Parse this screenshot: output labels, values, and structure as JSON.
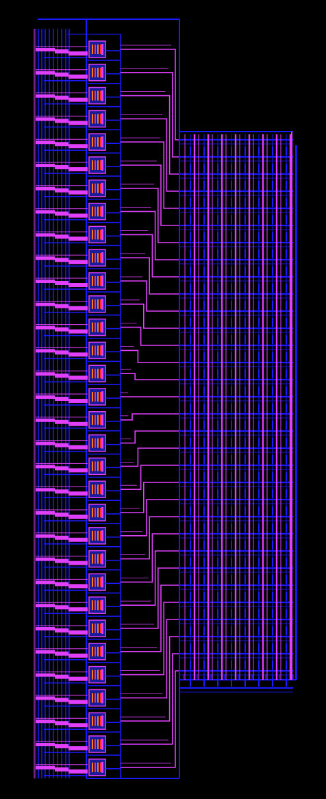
{
  "view": {
    "background": "#000000",
    "colors": {
      "metal_blue": "#1a1aff",
      "metal_magenta": "#e040fb",
      "cell_fill": "#1b1b9a",
      "cell_orange": "#ff7a1a",
      "cell_red": "#ff3030"
    }
  },
  "layout_description": {
    "left_decoder_rows": 32,
    "array_rows": 32,
    "array_columns": 8
  }
}
